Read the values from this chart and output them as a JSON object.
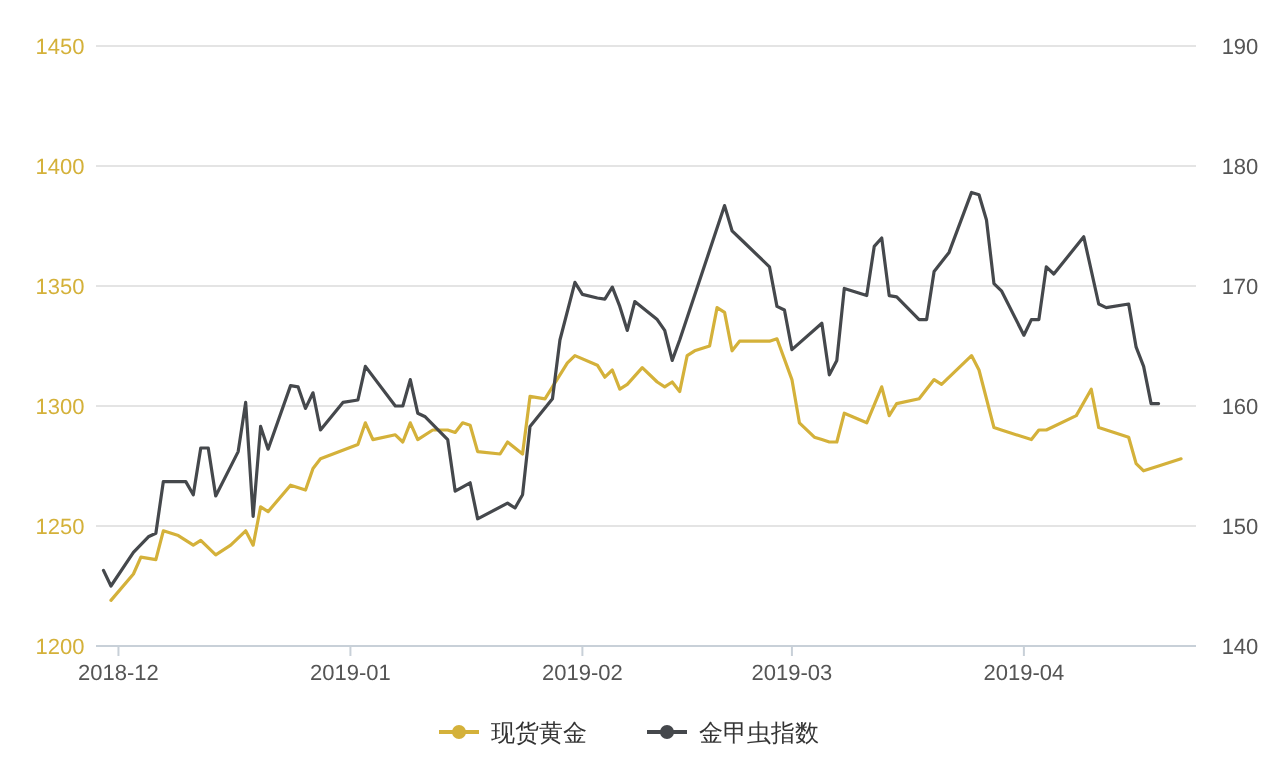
{
  "chart_data": {
    "type": "line",
    "xlim": [
      "2018-11-28",
      "2019-04-24"
    ],
    "xticks": [
      {
        "value": "2018-12-01",
        "label": "2018-12"
      },
      {
        "value": "2019-01-01",
        "label": "2019-01"
      },
      {
        "value": "2019-02-01",
        "label": "2019-02"
      },
      {
        "value": "2019-03-01",
        "label": "2019-03"
      },
      {
        "value": "2019-04-01",
        "label": "2019-04"
      }
    ],
    "ylim": [
      1200,
      1450
    ],
    "yticks": [
      1200,
      1250,
      1300,
      1350,
      1400,
      1450
    ],
    "y2lim": [
      140,
      190
    ],
    "y2ticks": [
      140,
      150,
      160,
      170,
      180,
      190
    ],
    "grid": "y",
    "legend": "bottom",
    "marker": "none",
    "line_style": "solid",
    "series": [
      {
        "name": "现货黄金",
        "color": "#d4b13a",
        "x": [
          "2018-11-30",
          "2018-12-03",
          "2018-12-04",
          "2018-12-06",
          "2018-12-07",
          "2018-12-09",
          "2018-12-11",
          "2018-12-12",
          "2018-12-14",
          "2018-12-16",
          "2018-12-18",
          "2018-12-19",
          "2018-12-20",
          "2018-12-21",
          "2018-12-24",
          "2018-12-26",
          "2018-12-27",
          "2018-12-28",
          "2019-01-02",
          "2019-01-03",
          "2019-01-04",
          "2019-01-07",
          "2019-01-08",
          "2019-01-09",
          "2019-01-10",
          "2019-01-12",
          "2019-01-14",
          "2019-01-15",
          "2019-01-16",
          "2019-01-17",
          "2019-01-18",
          "2019-01-21",
          "2019-01-22",
          "2019-01-24",
          "2019-01-25",
          "2019-01-27",
          "2019-01-28",
          "2019-01-30",
          "2019-01-31",
          "2019-02-03",
          "2019-02-04",
          "2019-02-05",
          "2019-02-06",
          "2019-02-07",
          "2019-02-09",
          "2019-02-11",
          "2019-02-12",
          "2019-02-13",
          "2019-02-14",
          "2019-02-15",
          "2019-02-16",
          "2019-02-18",
          "2019-02-19",
          "2019-02-20",
          "2019-02-21",
          "2019-02-22",
          "2019-02-26",
          "2019-02-27",
          "2019-03-01",
          "2019-03-02",
          "2019-03-04",
          "2019-03-05",
          "2019-03-06",
          "2019-03-07",
          "2019-03-08",
          "2019-03-11",
          "2019-03-13",
          "2019-03-14",
          "2019-03-15",
          "2019-03-18",
          "2019-03-20",
          "2019-03-21",
          "2019-03-25",
          "2019-03-26",
          "2019-03-28",
          "2019-03-29",
          "2019-04-02",
          "2019-04-03",
          "2019-04-04",
          "2019-04-08",
          "2019-04-10",
          "2019-04-11",
          "2019-04-15",
          "2019-04-16",
          "2019-04-17",
          "2019-04-19",
          "2019-04-22"
        ],
        "values": [
          1219,
          1230,
          1237,
          1236,
          1248,
          1246,
          1242,
          1244,
          1238,
          1242,
          1248,
          1242,
          1258,
          1256,
          1267,
          1265,
          1274,
          1278,
          1284,
          1293,
          1286,
          1288,
          1285,
          1293,
          1286,
          1290,
          1290,
          1289,
          1293,
          1292,
          1281,
          1280,
          1285,
          1280,
          1304,
          1303,
          1308,
          1318,
          1321,
          1317,
          1312,
          1315,
          1307,
          1309,
          1316,
          1310,
          1308,
          1310,
          1306,
          1321,
          1323,
          1325,
          1341,
          1339,
          1323,
          1327,
          1327,
          1328,
          1311,
          1293,
          1287,
          1286,
          1285,
          1285,
          1297,
          1293,
          1308,
          1296,
          1301,
          1303,
          1311,
          1309,
          1321,
          1315,
          1291,
          1290,
          1286,
          1290,
          1290,
          1296,
          1307,
          1291,
          1287,
          1276,
          1273,
          1275,
          1278
        ]
      },
      {
        "name": "金甲虫指数",
        "color": "#45484c",
        "axis": "y2",
        "x": [
          "2018-11-29",
          "2018-11-30",
          "2018-12-03",
          "2018-12-05",
          "2018-12-06",
          "2018-12-07",
          "2018-12-10",
          "2018-12-11",
          "2018-12-12",
          "2018-12-13",
          "2018-12-14",
          "2018-12-17",
          "2018-12-18",
          "2018-12-19",
          "2018-12-20",
          "2018-12-21",
          "2018-12-24",
          "2018-12-25",
          "2018-12-26",
          "2018-12-27",
          "2018-12-28",
          "2018-12-31",
          "2019-01-02",
          "2019-01-03",
          "2019-01-07",
          "2019-01-08",
          "2019-01-09",
          "2019-01-10",
          "2019-01-11",
          "2019-01-14",
          "2019-01-15",
          "2019-01-17",
          "2019-01-18",
          "2019-01-22",
          "2019-01-23",
          "2019-01-24",
          "2019-01-25",
          "2019-01-28",
          "2019-01-29",
          "2019-01-31",
          "2019-02-01",
          "2019-02-03",
          "2019-02-04",
          "2019-02-05",
          "2019-02-06",
          "2019-02-07",
          "2019-02-08",
          "2019-02-11",
          "2019-02-12",
          "2019-02-13",
          "2019-02-14",
          "2019-02-20",
          "2019-02-21",
          "2019-02-22",
          "2019-02-26",
          "2019-02-27",
          "2019-02-28",
          "2019-03-01",
          "2019-03-05",
          "2019-03-06",
          "2019-03-07",
          "2019-03-08",
          "2019-03-11",
          "2019-03-12",
          "2019-03-13",
          "2019-03-14",
          "2019-03-15",
          "2019-03-18",
          "2019-03-19",
          "2019-03-20",
          "2019-03-22",
          "2019-03-25",
          "2019-03-26",
          "2019-03-27",
          "2019-03-28",
          "2019-03-29",
          "2019-04-01",
          "2019-04-02",
          "2019-04-03",
          "2019-04-04",
          "2019-04-05",
          "2019-04-09",
          "2019-04-11",
          "2019-04-12",
          "2019-04-15",
          "2019-04-16",
          "2019-04-17",
          "2019-04-18",
          "2019-04-19"
        ],
        "values": [
          146.3,
          145.0,
          147.8,
          149.1,
          149.4,
          153.7,
          153.7,
          152.6,
          156.5,
          156.5,
          152.5,
          156.2,
          160.3,
          150.8,
          158.3,
          156.4,
          161.7,
          161.6,
          159.8,
          161.1,
          158.0,
          160.3,
          160.5,
          163.3,
          160.0,
          160.0,
          162.2,
          159.4,
          159.1,
          157.2,
          152.9,
          153.6,
          150.6,
          151.9,
          151.5,
          152.6,
          158.3,
          160.6,
          165.5,
          170.3,
          169.3,
          169.0,
          168.9,
          169.9,
          168.3,
          166.3,
          168.7,
          167.2,
          166.3,
          163.8,
          165.5,
          176.7,
          174.6,
          174.0,
          171.6,
          168.3,
          168.0,
          164.7,
          166.9,
          162.6,
          163.8,
          169.8,
          169.2,
          173.3,
          174.0,
          169.2,
          169.1,
          167.2,
          167.2,
          171.2,
          172.8,
          177.8,
          177.6,
          175.5,
          170.2,
          169.6,
          165.9,
          167.2,
          167.2,
          171.6,
          171.0,
          174.1,
          168.5,
          168.2,
          168.5,
          164.9,
          163.3,
          160.2,
          160.2
        ]
      }
    ]
  }
}
